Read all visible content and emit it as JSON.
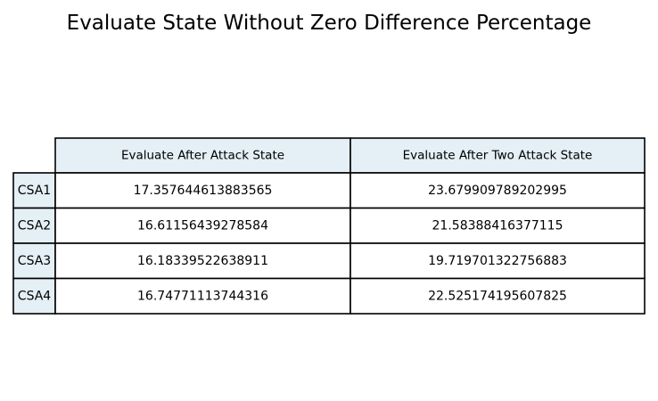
{
  "chart_data": {
    "type": "table",
    "title": "Evaluate State Without Zero Difference Percentage",
    "columns": [
      "Evaluate After Attack State",
      "Evaluate After Two Attack State"
    ],
    "rows": [
      "CSA1",
      "CSA2",
      "CSA3",
      "CSA4"
    ],
    "cells": [
      [
        "17.357644613883565",
        "23.679909789202995"
      ],
      [
        "16.61156439278584",
        "21.58388416377115"
      ],
      [
        "16.18339522638911",
        "19.719701322756883"
      ],
      [
        "16.74771113744316",
        "22.525174195607825"
      ]
    ],
    "header_color": "#e4eff6",
    "cell_color": "#ffffff",
    "edge_color": "#000000"
  }
}
